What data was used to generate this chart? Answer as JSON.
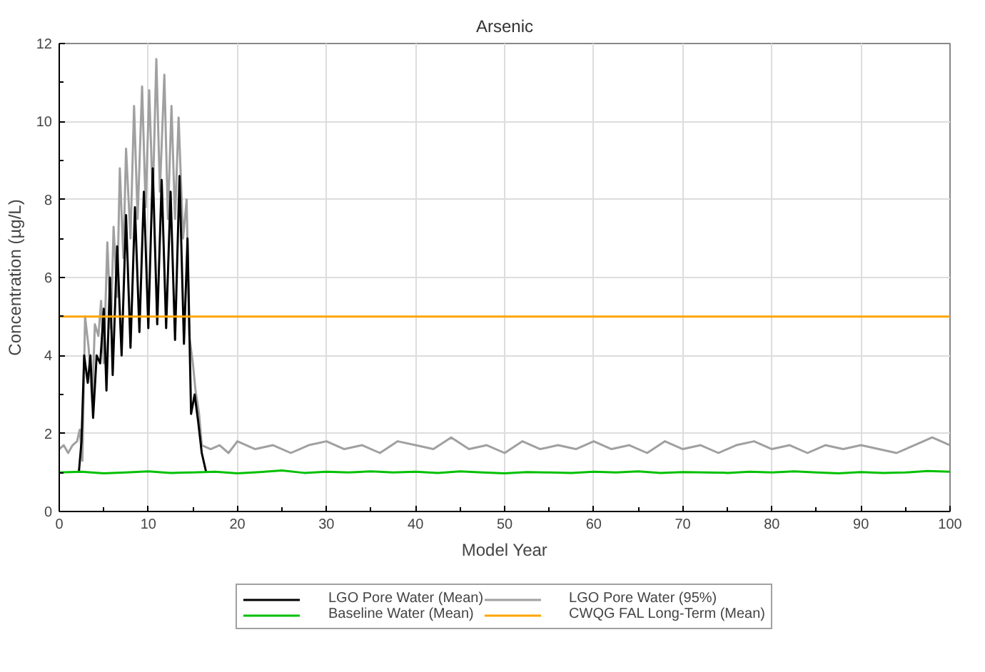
{
  "chart_data": {
    "type": "line",
    "title": "Arsenic",
    "xlabel": "Model Year",
    "ylabel": "Concentration (µg/L)",
    "xlim": [
      0,
      100
    ],
    "ylim": [
      0,
      12
    ],
    "xticks": [
      0,
      10,
      20,
      30,
      40,
      50,
      60,
      70,
      80,
      90,
      100
    ],
    "yticks": [
      0,
      2,
      4,
      6,
      8,
      10,
      12
    ],
    "grid": true,
    "legend": "bottom",
    "marker": "none",
    "line_style": "solid",
    "series": [
      {
        "name": "LGO Pore Water (95%)",
        "color": "#a0a0a0",
        "x": [
          0,
          0.5,
          1,
          1.5,
          2,
          2.3,
          2.6,
          2.9,
          3.3,
          3.7,
          4.0,
          4.4,
          4.7,
          5.0,
          5.4,
          5.8,
          6.1,
          6.5,
          6.8,
          7.2,
          7.5,
          8.0,
          8.4,
          8.8,
          9.3,
          9.7,
          10.1,
          10.5,
          10.9,
          11.3,
          11.8,
          12.2,
          12.6,
          13.0,
          13.4,
          13.9,
          14.3,
          14.6,
          15.0,
          15.3,
          15.7,
          16.0,
          17,
          18,
          19,
          20,
          22,
          24,
          26,
          28,
          30,
          32,
          34,
          36,
          38,
          40,
          42,
          44,
          46,
          48,
          50,
          52,
          54,
          56,
          58,
          60,
          62,
          64,
          66,
          68,
          70,
          72,
          74,
          76,
          78,
          80,
          82,
          84,
          86,
          88,
          90,
          92,
          94,
          96,
          98,
          99,
          100
        ],
        "values": [
          1.6,
          1.7,
          1.5,
          1.7,
          1.8,
          2.1,
          1.3,
          5.0,
          4.2,
          2.8,
          4.8,
          4.5,
          5.4,
          3.8,
          6.9,
          4.7,
          7.3,
          5.5,
          8.8,
          6.5,
          9.3,
          7.0,
          10.4,
          7.5,
          10.9,
          7.8,
          10.8,
          8.0,
          11.6,
          8.2,
          11.2,
          7.5,
          10.4,
          7.5,
          10.1,
          7.0,
          8.0,
          4.5,
          3.8,
          3.1,
          2.5,
          1.7,
          1.6,
          1.7,
          1.5,
          1.8,
          1.6,
          1.7,
          1.5,
          1.7,
          1.8,
          1.6,
          1.7,
          1.5,
          1.8,
          1.7,
          1.6,
          1.9,
          1.6,
          1.7,
          1.5,
          1.8,
          1.6,
          1.7,
          1.6,
          1.8,
          1.6,
          1.7,
          1.5,
          1.8,
          1.6,
          1.7,
          1.5,
          1.7,
          1.8,
          1.6,
          1.7,
          1.5,
          1.7,
          1.6,
          1.7,
          1.6,
          1.5,
          1.7,
          1.9,
          1.8,
          1.7
        ]
      },
      {
        "name": "LGO Pore Water (Mean)",
        "color": "#000000",
        "x": [
          2.2,
          2.5,
          2.8,
          3.2,
          3.5,
          3.8,
          4.2,
          4.6,
          5.0,
          5.3,
          5.7,
          6.0,
          6.5,
          7.0,
          7.5,
          8.0,
          8.5,
          9.0,
          9.5,
          10.0,
          10.5,
          11.0,
          11.5,
          12.0,
          12.5,
          13.0,
          13.5,
          14.0,
          14.4,
          14.8,
          15.2,
          15.6,
          16.0,
          16.5
        ],
        "values": [
          1.0,
          1.8,
          4.0,
          3.3,
          4.0,
          2.4,
          4.0,
          3.8,
          5.2,
          3.1,
          6.0,
          3.5,
          6.8,
          4.0,
          7.6,
          4.2,
          7.8,
          4.6,
          8.2,
          4.7,
          8.8,
          4.8,
          8.5,
          4.7,
          8.2,
          4.4,
          8.6,
          4.3,
          7.0,
          2.5,
          3.0,
          2.3,
          1.5,
          1.0
        ]
      },
      {
        "name": "Baseline Water (Mean)",
        "color": "#00c000",
        "x": [
          0,
          2.5,
          5,
          7.5,
          10,
          12.5,
          15,
          17.5,
          20,
          22.5,
          25,
          27.5,
          30,
          32.5,
          35,
          37.5,
          40,
          42.5,
          45,
          47.5,
          50,
          52.5,
          55,
          57.5,
          60,
          62.5,
          65,
          67.5,
          70,
          72.5,
          75,
          77.5,
          80,
          82.5,
          85,
          87.5,
          90,
          92.5,
          95,
          97.5,
          100
        ],
        "values": [
          1.0,
          1.02,
          0.98,
          1.0,
          1.03,
          0.99,
          1.0,
          1.02,
          0.98,
          1.01,
          1.05,
          0.99,
          1.02,
          1.0,
          1.03,
          1.0,
          1.02,
          0.99,
          1.03,
          1.0,
          0.98,
          1.01,
          1.0,
          0.99,
          1.02,
          1.0,
          1.03,
          0.99,
          1.01,
          1.0,
          0.99,
          1.02,
          1.0,
          1.03,
          1.0,
          0.98,
          1.01,
          0.99,
          1.0,
          1.04,
          1.02
        ]
      },
      {
        "name": "CWQG FAL Long-Term (Mean)",
        "color": "#ffa500",
        "x": [
          0,
          100
        ],
        "values": [
          5,
          5
        ]
      }
    ]
  }
}
